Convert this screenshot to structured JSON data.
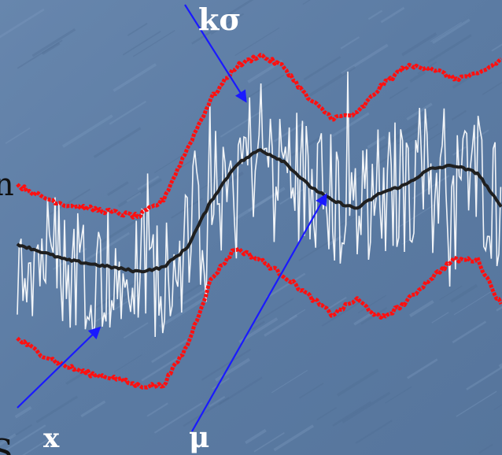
{
  "labels": {
    "sigma": "kσ",
    "x": "x",
    "mu": "μ",
    "left_edge_top": "n",
    "left_edge_bottom": "S"
  },
  "colors": {
    "background": "#5f7fa6",
    "signal": "#ffffff",
    "mean": "#1f1f1f",
    "band": "#ff1010",
    "arrow": "#1a1aff"
  },
  "chart_data": {
    "type": "line",
    "title": "",
    "xlabel": "",
    "ylabel": "",
    "grid": false,
    "legend": "none",
    "x": [
      0,
      5,
      10,
      15,
      20,
      25,
      30,
      35,
      40,
      45,
      50,
      55,
      60,
      65,
      70,
      75,
      80,
      85,
      90,
      95,
      100
    ],
    "xlim": [
      0,
      100
    ],
    "ylim": [
      0,
      100
    ],
    "series": [
      {
        "role": "signal",
        "amplitude": 18,
        "values": [
          46,
          44,
          42,
          41,
          40,
          39,
          40,
          45,
          57,
          66,
          70,
          67,
          61,
          57,
          55,
          59,
          61,
          65,
          66,
          64,
          55
        ]
      },
      {
        "role": "mean",
        "values": [
          46,
          44,
          42,
          41,
          40,
          39,
          40,
          45,
          57,
          66,
          70,
          67,
          61,
          57,
          55,
          59,
          61,
          65,
          66,
          64,
          55
        ]
      },
      {
        "role": "upper-band",
        "values": [
          61,
          58,
          56,
          55,
          54,
          53,
          57,
          70,
          83,
          91,
          94,
          91,
          83,
          78,
          79,
          86,
          91,
          91,
          88,
          89,
          93
        ]
      },
      {
        "role": "lower-band",
        "values": [
          22,
          18,
          15,
          13,
          12,
          10,
          10,
          20,
          37,
          45,
          42,
          38,
          33,
          28,
          32,
          27,
          31,
          37,
          42,
          42,
          30
        ]
      }
    ]
  }
}
